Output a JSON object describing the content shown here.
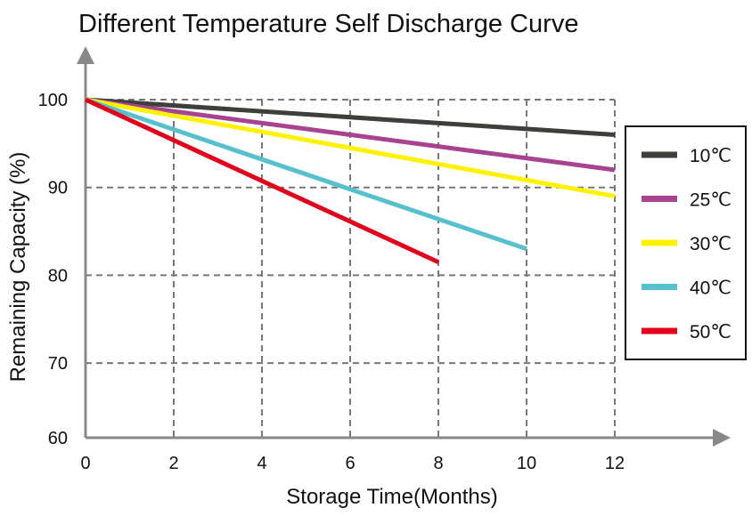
{
  "chart_data": {
    "type": "line",
    "title": "Different Temperature Self Discharge Curve",
    "xlabel": "Storage Time(Months)",
    "ylabel": "Remaining Capacity (%)",
    "xlim": [
      0,
      12
    ],
    "ylim": [
      60,
      100
    ],
    "xticks": [
      "0",
      "2",
      "4",
      "6",
      "8",
      "10",
      "12"
    ],
    "yticks": [
      "60",
      "70",
      "80",
      "90",
      "100"
    ],
    "grid": true,
    "legend_position": "right",
    "series": [
      {
        "name": "10℃",
        "color": "#3d3f3a",
        "x": [
          0,
          12
        ],
        "y": [
          100,
          96
        ]
      },
      {
        "name": "25℃",
        "color": "#a8448f",
        "x": [
          0,
          12
        ],
        "y": [
          100,
          92
        ]
      },
      {
        "name": "30℃",
        "color": "#fff200",
        "x": [
          0,
          12
        ],
        "y": [
          100,
          89
        ]
      },
      {
        "name": "40℃",
        "color": "#56c0cc",
        "x": [
          0,
          10
        ],
        "y": [
          100,
          83
        ]
      },
      {
        "name": "50℃",
        "color": "#e3001b",
        "x": [
          0,
          8
        ],
        "y": [
          100,
          81.5
        ]
      }
    ]
  }
}
